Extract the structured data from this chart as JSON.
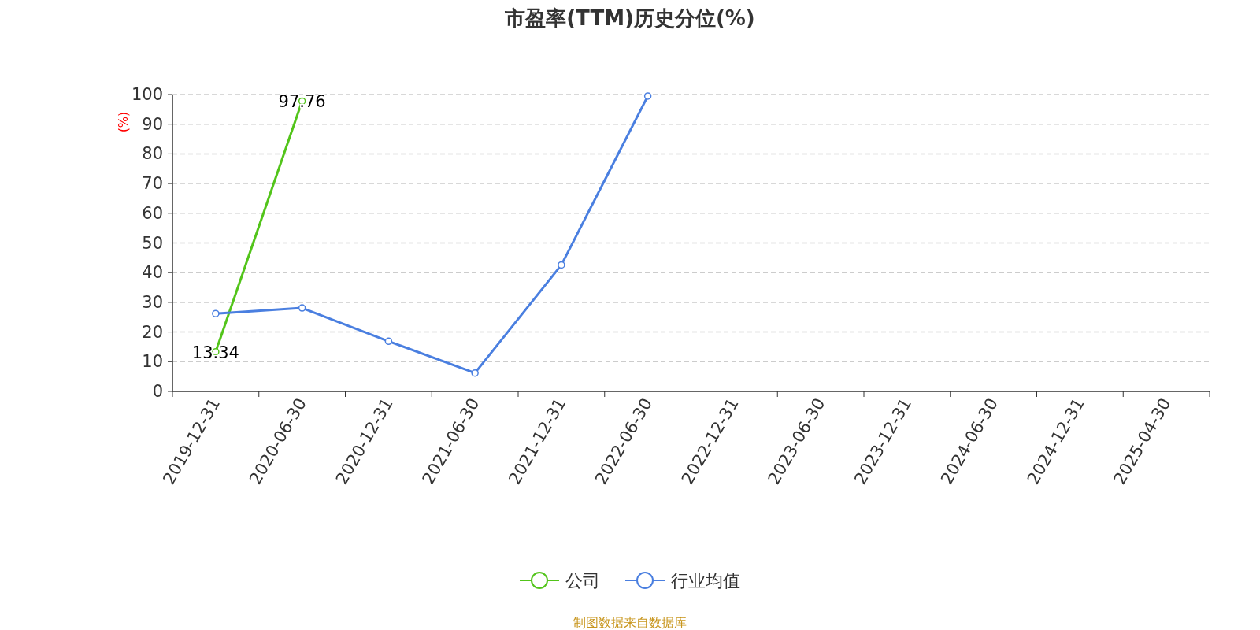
{
  "chart_data": {
    "type": "line",
    "title": "市盈率(TTM)历史分位(%)",
    "ylabel": "(%)",
    "categories": [
      "2019-12-31",
      "2020-06-30",
      "2020-12-31",
      "2021-06-30",
      "2021-12-31",
      "2022-06-30",
      "2022-12-31",
      "2023-06-30",
      "2023-12-31",
      "2024-06-30",
      "2024-12-31",
      "2025-04-30"
    ],
    "series": [
      {
        "name": "公司",
        "color": "#52c41a",
        "values": [
          13.34,
          97.76,
          null,
          null,
          null,
          null,
          null,
          null,
          null,
          null,
          null,
          null
        ],
        "value_labels": [
          "13.34",
          "97.76",
          null,
          null,
          null,
          null,
          null,
          null,
          null,
          null,
          null,
          null
        ]
      },
      {
        "name": "行业均值",
        "color": "#4a7fe0",
        "values": [
          26.2,
          28.1,
          16.9,
          6.2,
          42.6,
          99.5,
          null,
          null,
          null,
          null,
          null,
          null
        ]
      }
    ],
    "ylim": [
      0,
      100
    ],
    "yticks": [
      0,
      10,
      20,
      30,
      40,
      50,
      60,
      70,
      80,
      90,
      100
    ],
    "grid": "y",
    "legend": "bottom",
    "marker": "circle",
    "line_style": "solid",
    "annotations": [
      "制图数据来自数据库"
    ]
  }
}
